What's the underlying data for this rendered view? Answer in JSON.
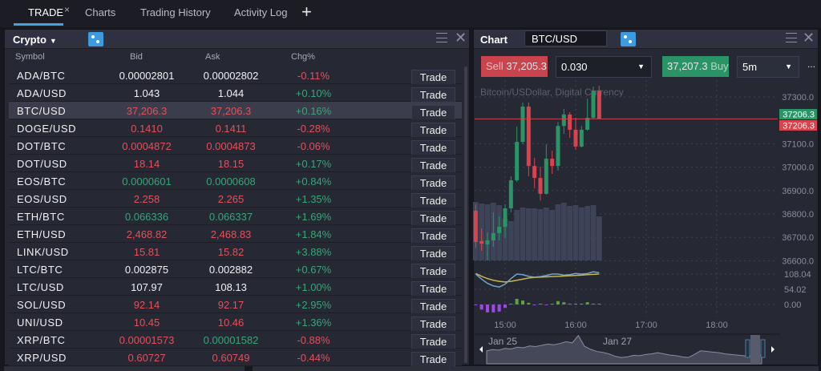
{
  "tabs": [
    {
      "label": "TRADE",
      "active": true
    },
    {
      "label": "Charts"
    },
    {
      "label": "Trading History"
    },
    {
      "label": "Activity Log"
    }
  ],
  "tab_close_glyph": "×",
  "tab_add_glyph": "+",
  "watchlist": {
    "title": "Crypto",
    "columns": {
      "symbol": "Symbol",
      "bid": "Bid",
      "ask": "Ask",
      "chg": "Chg%"
    },
    "trade_label": "Trade",
    "rows": [
      {
        "symbol": "ADA/BTC",
        "bid": "0.00002801",
        "ask": "0.00002802",
        "chg": "-0.11%",
        "bid_color": "white",
        "ask_color": "white"
      },
      {
        "symbol": "ADA/USD",
        "bid": "1.043",
        "ask": "1.044",
        "chg": "+0.10%",
        "bid_color": "white",
        "ask_color": "white"
      },
      {
        "symbol": "BTC/USD",
        "bid": "37,206.3",
        "ask": "37,206.3",
        "chg": "+0.16%",
        "bid_color": "red",
        "ask_color": "red",
        "selected": true
      },
      {
        "symbol": "DOGE/USD",
        "bid": "0.1410",
        "ask": "0.1411",
        "chg": "-0.28%",
        "bid_color": "red",
        "ask_color": "red"
      },
      {
        "symbol": "DOT/BTC",
        "bid": "0.0004872",
        "ask": "0.0004873",
        "chg": "-0.06%",
        "bid_color": "red",
        "ask_color": "red"
      },
      {
        "symbol": "DOT/USD",
        "bid": "18.14",
        "ask": "18.15",
        "chg": "+0.17%",
        "bid_color": "red",
        "ask_color": "red"
      },
      {
        "symbol": "EOS/BTC",
        "bid": "0.0000601",
        "ask": "0.0000608",
        "chg": "+0.84%",
        "bid_color": "green",
        "ask_color": "green"
      },
      {
        "symbol": "EOS/USD",
        "bid": "2.258",
        "ask": "2.265",
        "chg": "+1.35%",
        "bid_color": "red",
        "ask_color": "red"
      },
      {
        "symbol": "ETH/BTC",
        "bid": "0.066336",
        "ask": "0.066337",
        "chg": "+1.69%",
        "bid_color": "green",
        "ask_color": "green"
      },
      {
        "symbol": "ETH/USD",
        "bid": "2,468.82",
        "ask": "2,468.83",
        "chg": "+1.84%",
        "bid_color": "red",
        "ask_color": "red"
      },
      {
        "symbol": "LINK/USD",
        "bid": "15.81",
        "ask": "15.82",
        "chg": "+3.88%",
        "bid_color": "red",
        "ask_color": "red"
      },
      {
        "symbol": "LTC/BTC",
        "bid": "0.002875",
        "ask": "0.002882",
        "chg": "+0.67%",
        "bid_color": "white",
        "ask_color": "white"
      },
      {
        "symbol": "LTC/USD",
        "bid": "107.97",
        "ask": "108.13",
        "chg": "+1.00%",
        "bid_color": "white",
        "ask_color": "white"
      },
      {
        "symbol": "SOL/USD",
        "bid": "92.14",
        "ask": "92.17",
        "chg": "+2.95%",
        "bid_color": "red",
        "ask_color": "red"
      },
      {
        "symbol": "UNI/USD",
        "bid": "10.45",
        "ask": "10.46",
        "chg": "+1.36%",
        "bid_color": "red",
        "ask_color": "red"
      },
      {
        "symbol": "XRP/BTC",
        "bid": "0.00001573",
        "ask": "0.00001582",
        "chg": "-0.88%",
        "bid_color": "red",
        "ask_color": "green"
      },
      {
        "symbol": "XRP/USD",
        "bid": "0.60727",
        "ask": "0.60749",
        "chg": "-0.44%",
        "bid_color": "red",
        "ask_color": "red"
      }
    ]
  },
  "chart": {
    "title": "Chart",
    "symbol": "BTC/USD",
    "sell_label": "Sell",
    "sell_price": "37,205.3",
    "quantity": "0.030",
    "buy_price": "37,207.3",
    "buy_label": "Buy",
    "timeframe": "5m",
    "more": "...",
    "instrument_desc": "Bitcoin/USDollar, Digital Currency",
    "colors": {
      "up": "#2a9467",
      "down": "#d9434d",
      "accent": "#3d9be0"
    }
  },
  "chart_data": {
    "type": "candlestick",
    "price_ticks": [
      "37300.0",
      "37100.0",
      "37000.0",
      "36900.0",
      "36800.0",
      "36700.0",
      "36600.0"
    ],
    "price_tick_values": [
      37300,
      37100,
      37000,
      36900,
      36800,
      36700,
      36600
    ],
    "last_price_labels": [
      {
        "text": "37206.3",
        "color": "#2a9467"
      },
      {
        "text": "37206.3",
        "color": "#d9434d"
      }
    ],
    "last_price": 37206.3,
    "time_ticks": [
      "15:00",
      "16:00",
      "17:00",
      "18:00"
    ],
    "candles": [
      {
        "t": "14:35",
        "o": 36814,
        "h": 36842,
        "l": 36654,
        "c": 36680,
        "v": 73
      },
      {
        "t": "14:40",
        "o": 36684,
        "h": 36738,
        "l": 36642,
        "c": 36673,
        "v": 71
      },
      {
        "t": "14:45",
        "o": 36670,
        "h": 36721,
        "l": 36601,
        "c": 36687,
        "v": 70
      },
      {
        "t": "14:50",
        "o": 36687,
        "h": 36807,
        "l": 36660,
        "c": 36718,
        "v": 72
      },
      {
        "t": "14:55",
        "o": 36718,
        "h": 36790,
        "l": 36687,
        "c": 36745,
        "v": 69
      },
      {
        "t": "15:00",
        "o": 36745,
        "h": 36842,
        "l": 36697,
        "c": 36824,
        "v": 52
      },
      {
        "t": "15:05",
        "o": 36824,
        "h": 36961,
        "l": 36807,
        "c": 36944,
        "v": 49
      },
      {
        "t": "15:10",
        "o": 36944,
        "h": 37173,
        "l": 36937,
        "c": 37108,
        "v": 63
      },
      {
        "t": "15:15",
        "o": 37108,
        "h": 37276,
        "l": 37098,
        "c": 37259,
        "v": 66
      },
      {
        "t": "15:20",
        "o": 37259,
        "h": 37276,
        "l": 36961,
        "c": 37005,
        "v": 65
      },
      {
        "t": "15:25",
        "o": 37005,
        "h": 37040,
        "l": 36910,
        "c": 36954,
        "v": 65
      },
      {
        "t": "15:30",
        "o": 36954,
        "h": 37002,
        "l": 36858,
        "c": 36886,
        "v": 64
      },
      {
        "t": "15:35",
        "o": 36886,
        "h": 37098,
        "l": 36882,
        "c": 37036,
        "v": 66
      },
      {
        "t": "15:40",
        "o": 37036,
        "h": 37070,
        "l": 36971,
        "c": 37005,
        "v": 63
      },
      {
        "t": "15:45",
        "o": 37005,
        "h": 37193,
        "l": 36985,
        "c": 37176,
        "v": 70
      },
      {
        "t": "15:50",
        "o": 37176,
        "h": 37249,
        "l": 37142,
        "c": 37225,
        "v": 72
      },
      {
        "t": "15:55",
        "o": 37225,
        "h": 37235,
        "l": 37125,
        "c": 37160,
        "v": 68
      },
      {
        "t": "16:00",
        "o": 37160,
        "h": 37211,
        "l": 37074,
        "c": 37088,
        "v": 69
      },
      {
        "t": "16:05",
        "o": 37088,
        "h": 37176,
        "l": 37084,
        "c": 37160,
        "v": 66
      },
      {
        "t": "16:10",
        "o": 37160,
        "h": 37293,
        "l": 37156,
        "c": 37211,
        "v": 68
      },
      {
        "t": "16:15",
        "o": 37211,
        "h": 37344,
        "l": 37207,
        "c": 37327,
        "v": 69
      },
      {
        "t": "16:20",
        "o": 37327,
        "h": 37348,
        "l": 37206,
        "c": 37206.3,
        "v": 55
      }
    ],
    "oscillator": {
      "ticks": [
        "108.04",
        "54.02",
        "0.00"
      ],
      "tick_values": [
        108.04,
        54.02,
        0
      ],
      "line_blue": [
        108,
        90,
        75,
        66,
        62,
        72,
        92,
        108,
        106,
        100,
        97,
        99,
        103,
        108,
        108,
        104,
        106,
        110,
        108,
        110,
        116,
        113
      ],
      "line_yellow": [
        110,
        100,
        92,
        86,
        82,
        80,
        82,
        86,
        90,
        94,
        96,
        97,
        98,
        99,
        100,
        101,
        102,
        103,
        104,
        106,
        107,
        108
      ],
      "histogram": [
        -2,
        -18,
        -28,
        -28,
        -25,
        -12,
        2,
        20,
        14,
        6,
        -2,
        0,
        -2,
        2,
        12,
        8,
        3,
        2,
        3,
        8,
        3,
        0
      ]
    },
    "navigator": {
      "labels": [
        "Jan 25",
        "Jan 27"
      ],
      "values": [
        40,
        44,
        42,
        48,
        46,
        52,
        50,
        56,
        54,
        58,
        62,
        60,
        64,
        70,
        66,
        90,
        55,
        45,
        38,
        35,
        30,
        22,
        18,
        20,
        25,
        24,
        28,
        30,
        34,
        30,
        26,
        24,
        20,
        18,
        28,
        40,
        38,
        36,
        34,
        30,
        28,
        26,
        24,
        22,
        30,
        26
      ]
    }
  }
}
